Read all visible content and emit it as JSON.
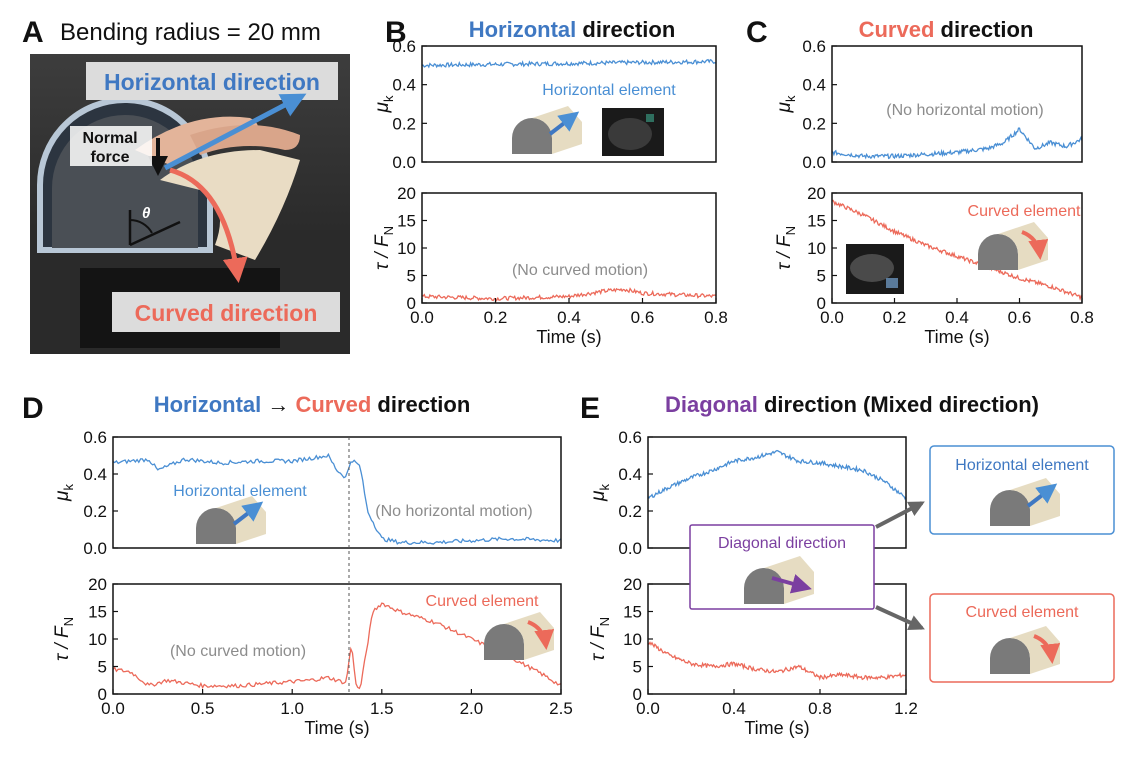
{
  "colors": {
    "blue": "#4a8fd4",
    "blue_text": "#3f78c2",
    "red": "#ec6a5a",
    "purple": "#7b3fa0",
    "gray_text": "#8c8c8c",
    "element_fill": "#e6dcc2",
    "element_face": "#777777"
  },
  "panel_a": {
    "label": "A",
    "title": "Bending radius = 20 mm",
    "horizontal_label": "Horizontal direction",
    "curved_label": "Curved direction",
    "normal_force_1": "Normal",
    "normal_force_2": "force",
    "theta": "θ"
  },
  "panel_b": {
    "label": "B",
    "title_colored": "Horizontal",
    "title_rest": " direction",
    "top_annotation": "Horizontal element",
    "bottom_annotation": "(No curved motion)"
  },
  "panel_c": {
    "label": "C",
    "title_colored": "Curved",
    "title_rest": " direction",
    "top_annotation": "(No horizontal motion)",
    "bottom_annotation": "Curved element"
  },
  "panel_d": {
    "label": "D",
    "title_colored_1": "Horizontal",
    "title_arrow": " → ",
    "title_colored_2": "Curved",
    "title_rest": " direction",
    "top_annotation_1": "Horizontal element",
    "top_annotation_2": "(No horizontal motion)",
    "bottom_annotation_1": "(No curved motion)",
    "bottom_annotation_2": "Curved element"
  },
  "panel_e": {
    "label": "E",
    "title_colored": "Diagonal",
    "title_rest": " direction (Mixed direction)",
    "diagonal_box": "Diagonal direction",
    "horizontal_box": "Horizontal element",
    "curved_box": "Curved element"
  },
  "axis_labels": {
    "mu": "μ",
    "mu_sub": "k",
    "tau": "τ / F",
    "tau_sub": "N",
    "time": "Time (s)"
  },
  "chart_data": [
    {
      "id": "B-top",
      "type": "line",
      "series": [
        {
          "color": "#4a8fd4",
          "x": [
            0,
            0.8
          ],
          "values": [
            0.5,
            0.52
          ]
        }
      ],
      "xlim": [
        0,
        0.8
      ],
      "ylim": [
        0,
        0.6
      ],
      "yticks": [
        "0.0",
        "0.2",
        "0.4",
        "0.6"
      ],
      "xticks": [],
      "ylabel": "μk",
      "xlabel": ""
    },
    {
      "id": "B-bottom",
      "type": "line",
      "series": [
        {
          "color": "#ec6a5a",
          "x": [
            0,
            0.1,
            0.2,
            0.3,
            0.4,
            0.5,
            0.55,
            0.6,
            0.7,
            0.8
          ],
          "values": [
            1.2,
            1.0,
            0.8,
            1.0,
            1.2,
            2.2,
            2.5,
            1.8,
            1.5,
            1.2
          ]
        }
      ],
      "xlim": [
        0,
        0.8
      ],
      "ylim": [
        0,
        20
      ],
      "yticks": [
        "0",
        "5",
        "10",
        "15",
        "20"
      ],
      "xticks": [
        "0.0",
        "0.2",
        "0.4",
        "0.6",
        "0.8"
      ],
      "ylabel": "τ / FN",
      "xlabel": "Time (s)"
    },
    {
      "id": "C-top",
      "type": "line",
      "series": [
        {
          "color": "#4a8fd4",
          "x": [
            0,
            0.1,
            0.2,
            0.3,
            0.4,
            0.5,
            0.55,
            0.6,
            0.65,
            0.7,
            0.75,
            0.8
          ],
          "values": [
            0.05,
            0.03,
            0.03,
            0.04,
            0.05,
            0.07,
            0.1,
            0.17,
            0.07,
            0.1,
            0.08,
            0.12
          ]
        }
      ],
      "xlim": [
        0,
        0.8
      ],
      "ylim": [
        0,
        0.6
      ],
      "yticks": [
        "0.0",
        "0.2",
        "0.4",
        "0.6"
      ],
      "xticks": [],
      "ylabel": "μk",
      "xlabel": ""
    },
    {
      "id": "C-bottom",
      "type": "line",
      "series": [
        {
          "color": "#ec6a5a",
          "x": [
            0,
            0.1,
            0.2,
            0.3,
            0.4,
            0.5,
            0.6,
            0.7,
            0.8
          ],
          "values": [
            18.5,
            16,
            13,
            10.5,
            8.5,
            6.5,
            4.5,
            3,
            1
          ]
        }
      ],
      "xlim": [
        0,
        0.8
      ],
      "ylim": [
        0,
        20
      ],
      "yticks": [
        "0",
        "5",
        "10",
        "15",
        "20"
      ],
      "xticks": [
        "0.0",
        "0.2",
        "0.4",
        "0.6",
        "0.8"
      ],
      "ylabel": "τ / FN",
      "xlabel": "Time (s)"
    },
    {
      "id": "D-top",
      "type": "line",
      "series": [
        {
          "color": "#4a8fd4",
          "x": [
            0,
            0.2,
            0.25,
            0.4,
            0.6,
            0.8,
            1.0,
            1.2,
            1.25,
            1.3,
            1.33,
            1.38,
            1.42,
            1.5,
            1.6,
            1.8,
            2.0,
            2.2,
            2.5
          ],
          "values": [
            0.46,
            0.48,
            0.42,
            0.48,
            0.46,
            0.47,
            0.47,
            0.5,
            0.42,
            0.38,
            0.48,
            0.44,
            0.2,
            0.05,
            0.03,
            0.03,
            0.04,
            0.05,
            0.04
          ]
        }
      ],
      "xlim": [
        0,
        2.5
      ],
      "ylim": [
        0,
        0.6
      ],
      "yticks": [
        "0.0",
        "0.2",
        "0.4",
        "0.6"
      ],
      "xticks": [],
      "ylabel": "μk",
      "xlabel": ""
    },
    {
      "id": "D-bottom",
      "type": "line",
      "series": [
        {
          "color": "#ec6a5a",
          "x": [
            0,
            0.1,
            0.2,
            0.3,
            0.5,
            0.7,
            0.9,
            1.1,
            1.2,
            1.3,
            1.33,
            1.36,
            1.38,
            1.45,
            1.5,
            1.6,
            1.8,
            2.0,
            2.2,
            2.4,
            2.5
          ],
          "values": [
            4.5,
            4,
            1.5,
            2.5,
            1.5,
            1.5,
            2,
            2.5,
            3,
            2,
            9,
            1,
            1,
            15,
            16.5,
            15,
            13,
            10,
            7,
            3.5,
            1.5
          ]
        }
      ],
      "xlim": [
        0,
        2.5
      ],
      "ylim": [
        0,
        20
      ],
      "yticks": [
        "0",
        "5",
        "10",
        "15",
        "20"
      ],
      "xticks": [
        "0.0",
        "0.5",
        "1.0",
        "1.5",
        "2.0",
        "2.5"
      ],
      "ylabel": "τ / FN",
      "xlabel": "Time (s)"
    },
    {
      "id": "E-top",
      "type": "line",
      "series": [
        {
          "color": "#4a8fd4",
          "x": [
            0,
            0.1,
            0.2,
            0.3,
            0.4,
            0.5,
            0.6,
            0.7,
            0.8,
            0.9,
            1.0,
            1.1,
            1.2
          ],
          "values": [
            0.27,
            0.33,
            0.38,
            0.42,
            0.47,
            0.49,
            0.52,
            0.47,
            0.46,
            0.44,
            0.42,
            0.36,
            0.27
          ]
        }
      ],
      "xlim": [
        0,
        1.2
      ],
      "ylim": [
        0,
        0.6
      ],
      "yticks": [
        "0.0",
        "0.2",
        "0.4",
        "0.6"
      ],
      "xticks": [],
      "ylabel": "μk",
      "xlabel": ""
    },
    {
      "id": "E-bottom",
      "type": "line",
      "series": [
        {
          "color": "#ec6a5a",
          "x": [
            0,
            0.1,
            0.2,
            0.3,
            0.4,
            0.5,
            0.6,
            0.7,
            0.8,
            0.9,
            1.0,
            1.1,
            1.2
          ],
          "values": [
            9.5,
            7,
            5.5,
            5,
            5.5,
            4.5,
            4,
            5,
            3,
            3.5,
            3,
            3,
            3.5
          ]
        }
      ],
      "xlim": [
        0,
        1.2
      ],
      "ylim": [
        0,
        20
      ],
      "yticks": [
        "0",
        "5",
        "10",
        "15",
        "20"
      ],
      "xticks": [
        "0.0",
        "0.4",
        "0.8",
        "1.2"
      ],
      "ylabel": "τ / FN",
      "xlabel": "Time (s)"
    }
  ]
}
